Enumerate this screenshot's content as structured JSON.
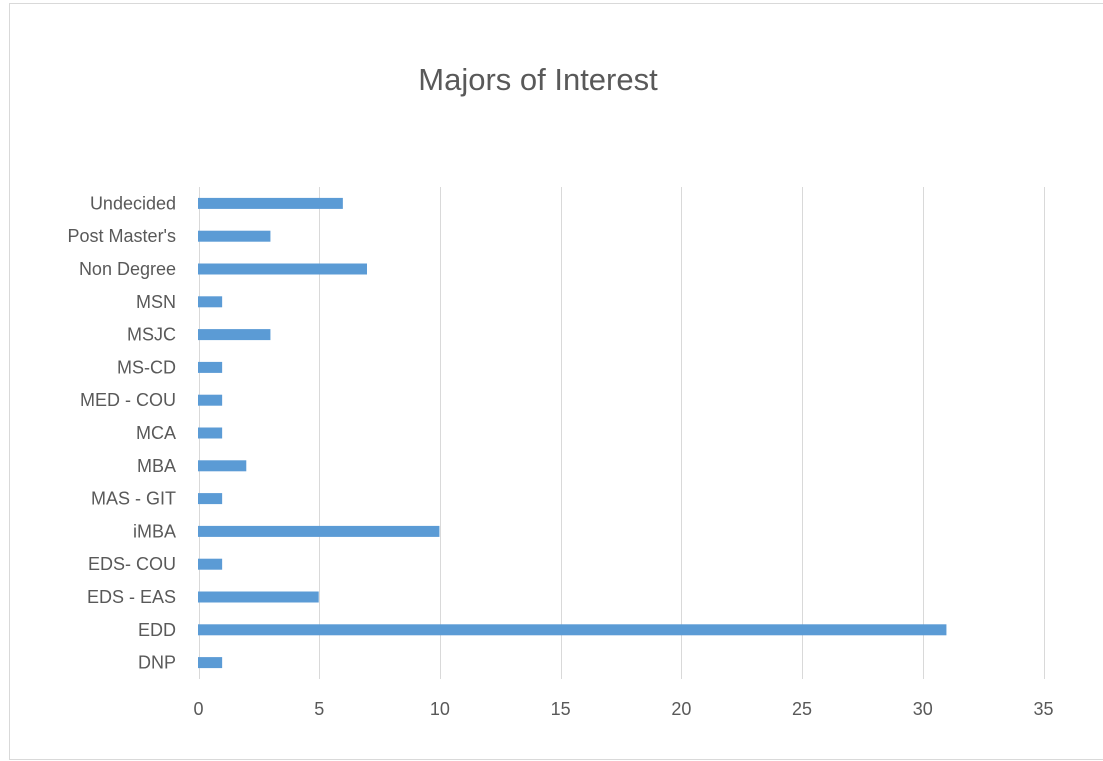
{
  "chart_data": {
    "type": "bar",
    "orientation": "horizontal",
    "title": "Majors of Interest",
    "xlabel": "",
    "ylabel": "",
    "categories": [
      "DNP",
      "EDD",
      "EDS - EAS",
      "EDS- COU",
      "iMBA",
      "MAS - GIT",
      "MBA",
      "MCA",
      "MED - COU",
      "MS-CD",
      "MSJC",
      "MSN",
      "Non Degree",
      "Post Master's",
      "Undecided"
    ],
    "values": [
      1,
      31,
      5,
      1,
      10,
      1,
      2,
      1,
      1,
      1,
      3,
      1,
      7,
      3,
      6
    ],
    "xlim": [
      0,
      35
    ],
    "xticks": [
      0,
      5,
      10,
      15,
      20,
      25,
      30,
      35
    ],
    "grid": true,
    "legend": "none",
    "bar_color": "#5b9bd5"
  }
}
